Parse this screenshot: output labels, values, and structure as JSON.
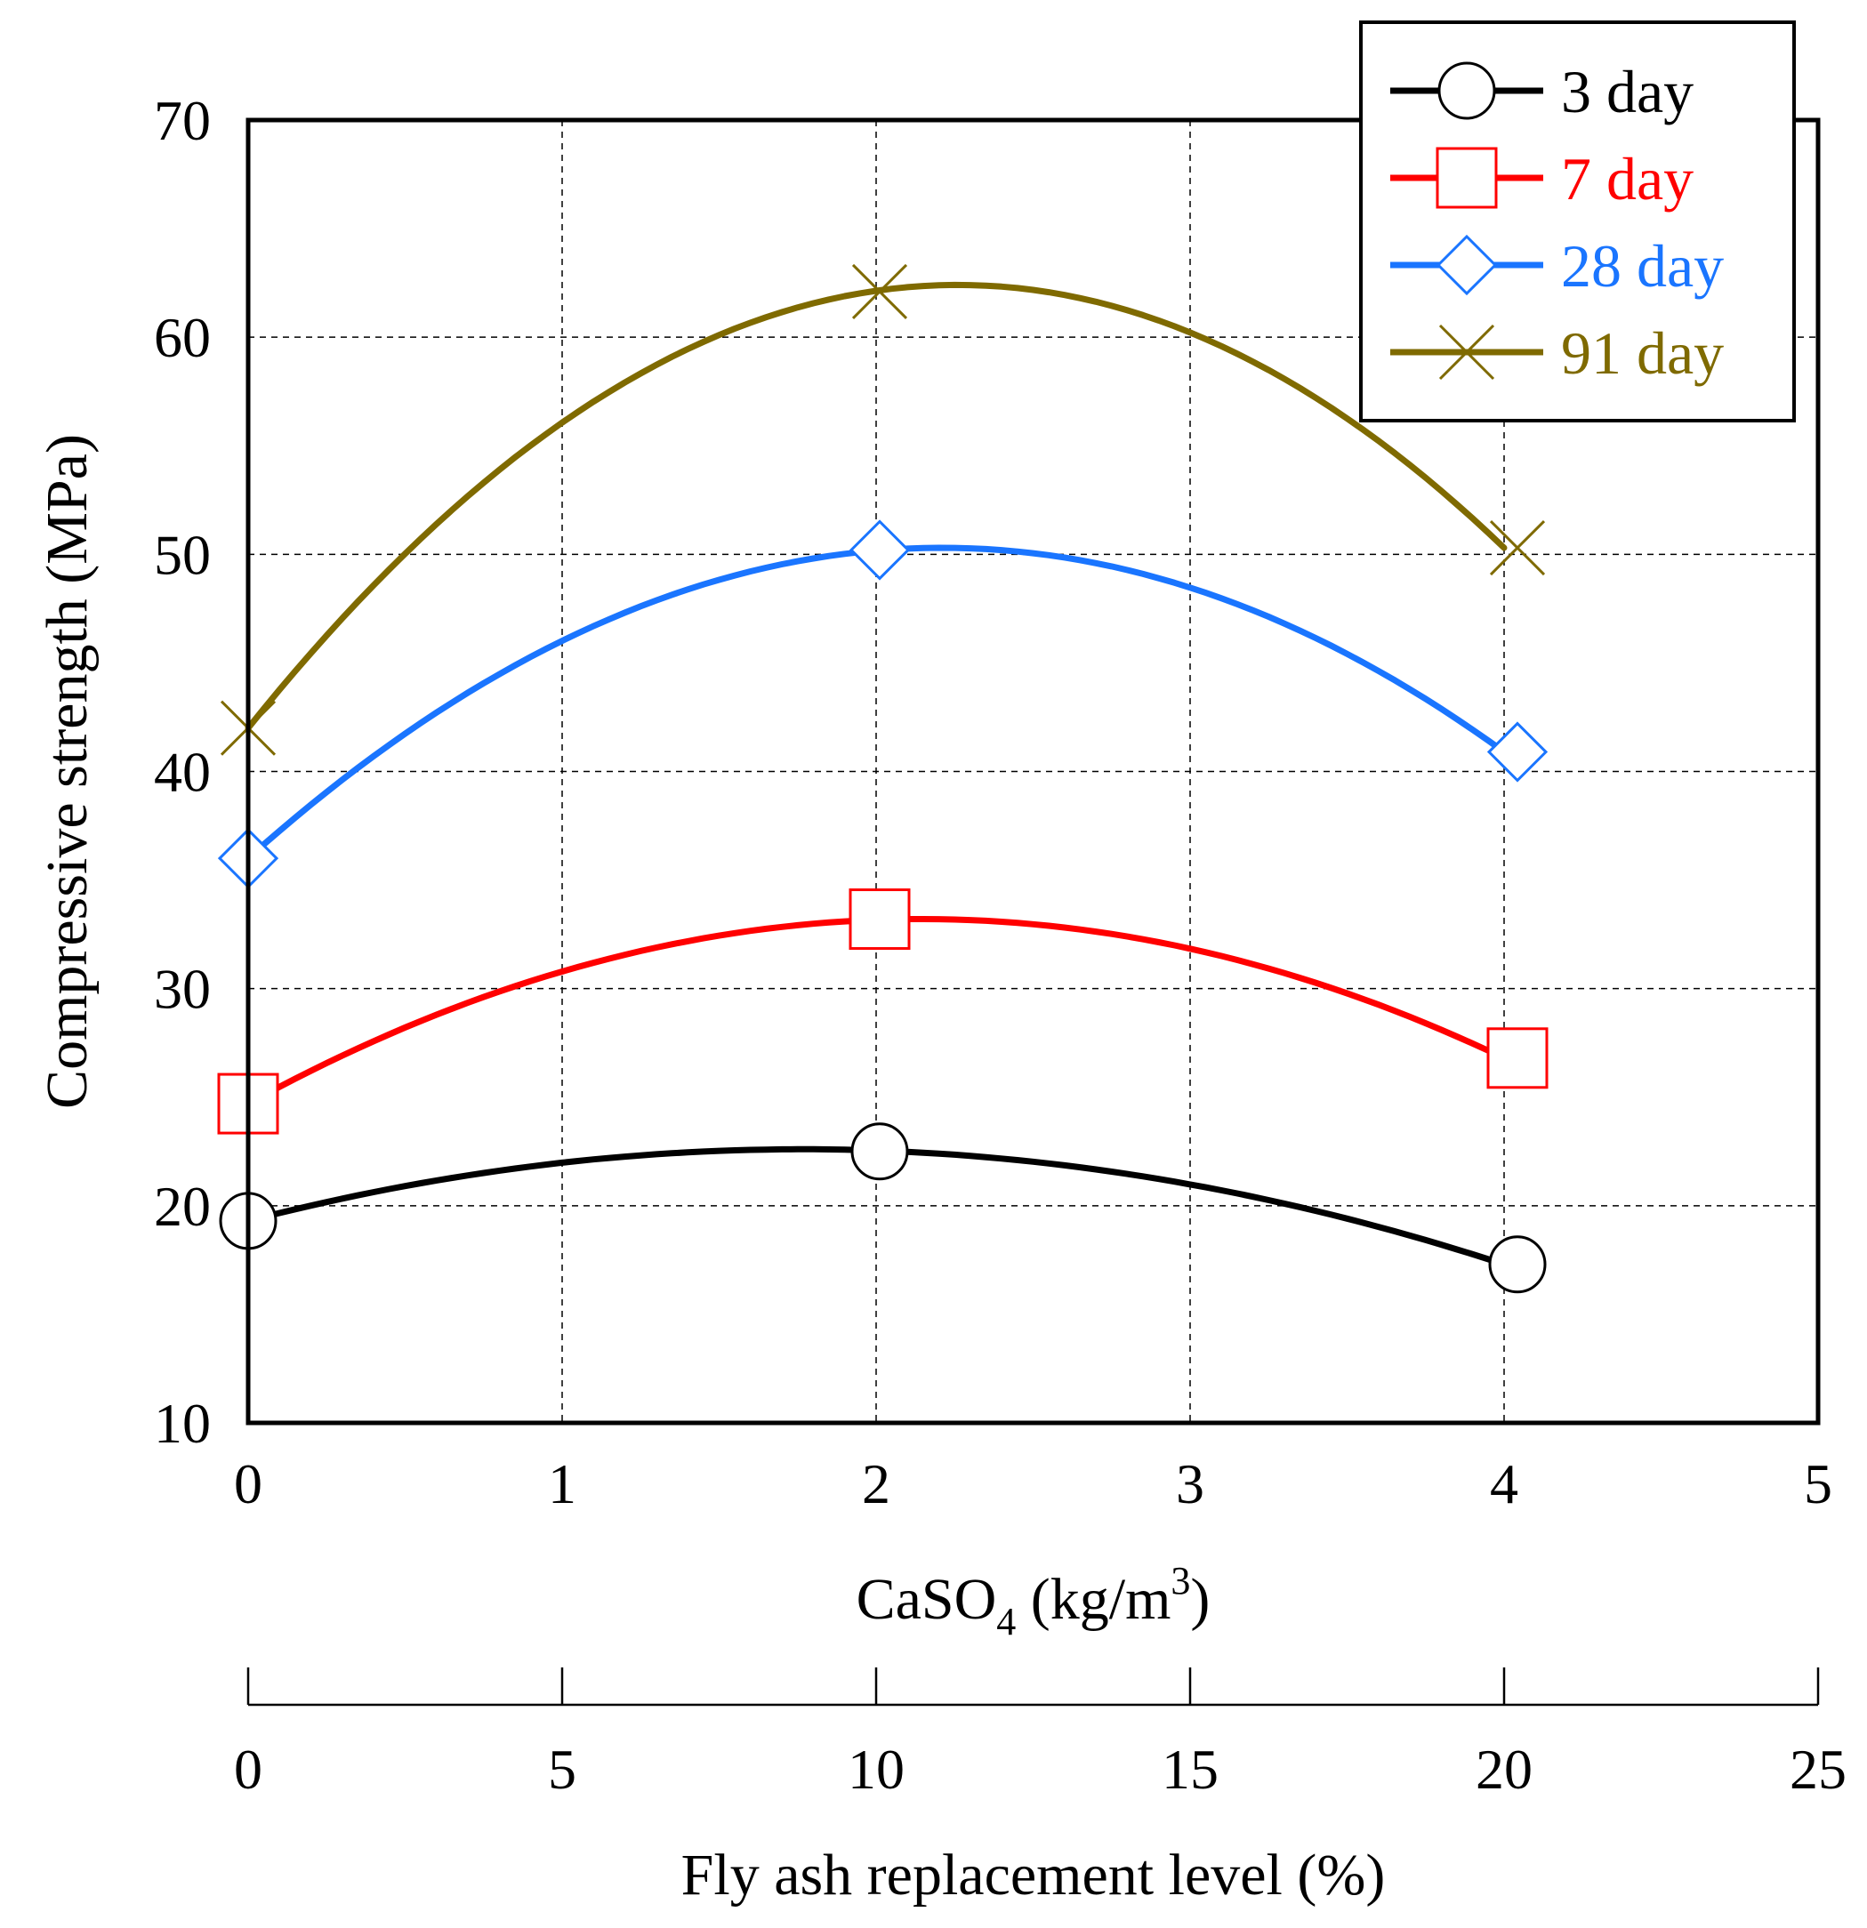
{
  "chart_data": {
    "type": "line",
    "y_axis": {
      "label": "Compressive strength (MPa)",
      "min": 10,
      "max": 70,
      "ticks": [
        10,
        20,
        30,
        40,
        50,
        60,
        70
      ]
    },
    "x_axis": {
      "label": {
        "base": "CaSO",
        "sub": "4",
        "middle": " (kg/m",
        "sup": "3",
        "end": ")"
      },
      "min": 0,
      "max": 5,
      "ticks": [
        0,
        1,
        2,
        3,
        4,
        5
      ]
    },
    "secondary_x_axis": {
      "label": "Fly ash replacement level (%)",
      "min": 0,
      "max": 25,
      "ticks": [
        0,
        5,
        10,
        15,
        20,
        25
      ]
    },
    "grid": true,
    "legend_position": "top-right",
    "series": [
      {
        "name": "3 day",
        "color": "#000000",
        "marker": "circle",
        "x": [
          0,
          2,
          4
        ],
        "y": [
          19.3,
          22.5,
          17.3
        ],
        "curve_peak": {
          "x": 1.8,
          "y": 22.6
        }
      },
      {
        "name": "7 day",
        "color": "#ff0000",
        "marker": "square",
        "x": [
          0,
          2,
          4
        ],
        "y": [
          24.7,
          33.2,
          26.8
        ],
        "curve_peak": {
          "x": 2.1,
          "y": 33.2
        }
      },
      {
        "name": "28 day",
        "color": "#1a75ff",
        "marker": "diamond",
        "x": [
          0,
          2,
          4
        ],
        "y": [
          36.0,
          50.2,
          40.9
        ],
        "curve_peak": {
          "x": 2.2,
          "y": 50.3
        }
      },
      {
        "name": "91 day",
        "color": "#7f6a00",
        "marker": "cross",
        "x": [
          0,
          2,
          4
        ],
        "y": [
          42.0,
          62.1,
          50.3
        ],
        "curve_peak": {
          "x": 2.3,
          "y": 62.4
        }
      }
    ]
  }
}
